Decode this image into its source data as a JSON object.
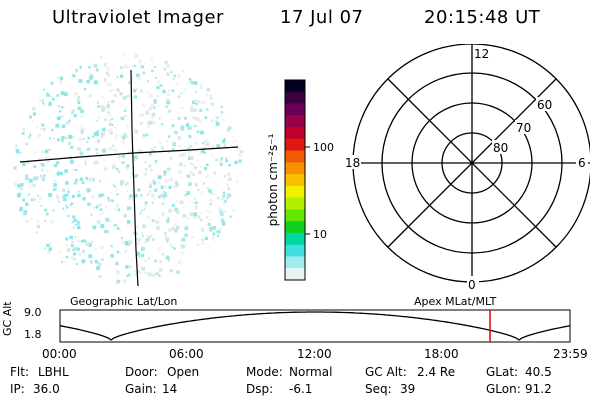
{
  "header": {
    "instrument": "Ultraviolet Imager",
    "date": "17 Jul 07",
    "time": "20:15:48 UT"
  },
  "colorbar": {
    "unit_label": "photon cm⁻²s⁻¹",
    "ticks": [
      "100",
      "10"
    ],
    "colors": [
      "#000020",
      "#3a0040",
      "#6a0055",
      "#9a0048",
      "#c0002a",
      "#e01810",
      "#f05a00",
      "#f89000",
      "#f8c000",
      "#f0f000",
      "#b0f000",
      "#60e800",
      "#10d020",
      "#00d8a0",
      "#40e0e0",
      "#a0ecec",
      "#e8f4f4"
    ]
  },
  "geo_panel": {
    "label": "Geographic Lat/Lon",
    "dot_colors": [
      "#8fe6e6",
      "#cfe6e6",
      "#dce8e4",
      "#e8eef0",
      "#a8e8e8",
      "#f2f4f4"
    ]
  },
  "polar_panel": {
    "label": "Apex MLat/MLT",
    "mlt_labels": {
      "top": "12",
      "bottom": "0",
      "left": "18",
      "right": "6"
    },
    "lat_labels": [
      "60",
      "70",
      "80"
    ]
  },
  "orbit": {
    "ylabel": "GC Alt",
    "y_ticks": [
      "9.0",
      "1.8"
    ],
    "x_ticks": [
      "00:00",
      "06:00",
      "12:00",
      "18:00",
      "23:59"
    ],
    "marker_color": "#e00000"
  },
  "status": {
    "row1": [
      {
        "label": "Flt:",
        "value": "LBHL"
      },
      {
        "label": "Door:",
        "value": "Open"
      },
      {
        "label": "Mode:",
        "value": "Normal"
      },
      {
        "label": "GC Alt:",
        "value": "2.4 Re"
      },
      {
        "label": "GLat:",
        "value": "40.5"
      }
    ],
    "row2": [
      {
        "label": "IP:",
        "value": "36.0"
      },
      {
        "label": "Gain:",
        "value": "14"
      },
      {
        "label": "Dsp:",
        "value": "-6.1"
      },
      {
        "label": "Seq:",
        "value": "39"
      },
      {
        "label": "GLon:",
        "value": "91.2"
      }
    ]
  }
}
